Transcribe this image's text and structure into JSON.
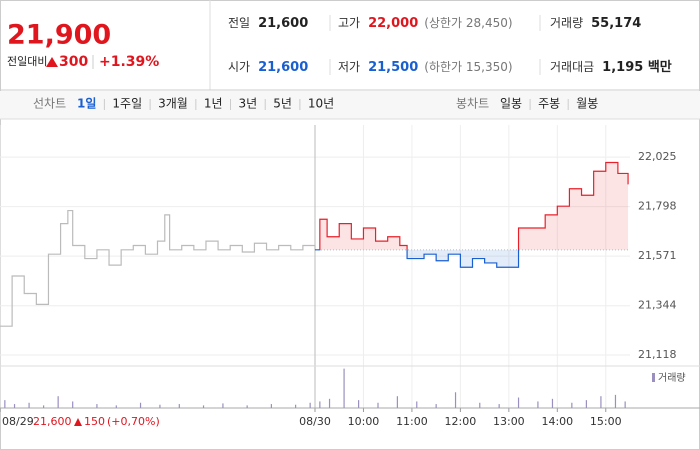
{
  "header": {
    "price": "21,900",
    "change_label": "전일대비",
    "change": "300",
    "change_pct": "+1.39%",
    "stats": [
      {
        "label": "전일",
        "value": "21,600",
        "color": "#222222"
      },
      {
        "label": "고가",
        "value": "22,000",
        "note": "(상한가 28,450)",
        "color": "#e0161f"
      },
      {
        "label": "거래량",
        "value": "55,174",
        "color": "#222222"
      },
      {
        "label": "시가",
        "value": "21,600",
        "color": "#1a5fd0"
      },
      {
        "label": "저가",
        "value": "21,500",
        "note": "(하한가 15,350)",
        "color": "#1a5fd0"
      },
      {
        "label": "거래대금",
        "value": "1,195 백만",
        "color": "#222222"
      }
    ]
  },
  "tabs": {
    "line_label": "선차트",
    "line": [
      "1일",
      "1주일",
      "3개월",
      "1년",
      "3년",
      "5년",
      "10년"
    ],
    "selected": 0,
    "candle_label": "봉차트",
    "candle": [
      "일봉",
      "주봉",
      "월봉"
    ]
  },
  "prev_day": {
    "close": "21,600",
    "change": "150",
    "change_pct": "(+0,70%)"
  },
  "chart_data": [
    {
      "type": "line",
      "xlim": [
        0,
        13
      ],
      "ylim": [
        21086,
        22172
      ],
      "xticks": [
        {
          "value": 0,
          "label": "08/29"
        },
        {
          "value": 6.5,
          "label": "08/30"
        },
        {
          "value": 7.5,
          "label": "10:00"
        },
        {
          "value": 8.5,
          "label": "11:00"
        },
        {
          "value": 9.5,
          "label": "12:00"
        },
        {
          "value": 10.5,
          "label": "13:00"
        },
        {
          "value": 11.5,
          "label": "14:00"
        },
        {
          "value": 12.5,
          "label": "15:00"
        }
      ],
      "yticks": [
        {
          "value": 22025,
          "label": "22,025"
        },
        {
          "value": 21798,
          "label": "21,798"
        },
        {
          "value": 21571,
          "label": "21,571"
        },
        {
          "value": 21344,
          "label": "21,344"
        },
        {
          "value": 21118,
          "label": "21,118"
        }
      ],
      "grid": true,
      "series": [
        {
          "color": "#bbbbbb",
          "x": [
            0,
            0.25,
            0.5,
            0.75,
            1.0,
            1.25,
            1.4,
            1.5,
            1.75,
            2.0,
            2.25,
            2.5,
            2.75,
            3.0,
            3.25,
            3.4,
            3.5,
            3.75,
            4.0,
            4.25,
            4.5,
            4.75,
            5.0,
            5.25,
            5.5,
            5.75,
            6.0,
            6.25,
            6.5
          ],
          "values": [
            21250,
            21480,
            21400,
            21350,
            21580,
            21720,
            21780,
            21620,
            21560,
            21600,
            21530,
            21600,
            21620,
            21580,
            21640,
            21760,
            21600,
            21620,
            21600,
            21640,
            21600,
            21620,
            21590,
            21630,
            21600,
            21620,
            21600,
            21620,
            21600
          ]
        },
        {
          "base": 21600,
          "color_up": "#e8202a",
          "color_down": "#1a5fd0",
          "x": [
            6.5,
            6.6,
            6.75,
            7.0,
            7.25,
            7.5,
            7.75,
            8.0,
            8.25,
            8.4,
            8.75,
            9.0,
            9.25,
            9.5,
            9.75,
            10.0,
            10.25,
            10.5,
            10.7,
            11.0,
            11.25,
            11.5,
            11.75,
            12.0,
            12.25,
            12.5,
            12.75,
            12.96
          ],
          "values": [
            21600,
            21740,
            21660,
            21720,
            21650,
            21700,
            21640,
            21660,
            21620,
            21560,
            21580,
            21550,
            21580,
            21520,
            21560,
            21540,
            21520,
            21520,
            21700,
            21700,
            21760,
            21800,
            21880,
            21850,
            21960,
            22000,
            21950,
            21900
          ]
        }
      ]
    },
    {
      "type": "bar",
      "legend": "거래량",
      "color": "#9b8fc0",
      "ylim": [
        0,
        3200
      ],
      "x": [
        0.1,
        0.3,
        0.6,
        0.9,
        1.2,
        1.5,
        2.0,
        2.4,
        2.9,
        3.3,
        3.7,
        4.2,
        4.6,
        5.1,
        5.6,
        6.1,
        6.4,
        6.6,
        6.8,
        7.1,
        7.4,
        7.8,
        8.2,
        8.6,
        9.0,
        9.4,
        9.9,
        10.3,
        10.7,
        11.1,
        11.4,
        11.8,
        12.1,
        12.4,
        12.7,
        12.9
      ],
      "values": [
        600,
        300,
        400,
        200,
        900,
        500,
        300,
        200,
        400,
        250,
        300,
        200,
        350,
        200,
        300,
        250,
        400,
        500,
        700,
        3000,
        600,
        400,
        900,
        500,
        300,
        1200,
        400,
        300,
        800,
        500,
        700,
        400,
        600,
        900,
        1000,
        500
      ]
    }
  ]
}
